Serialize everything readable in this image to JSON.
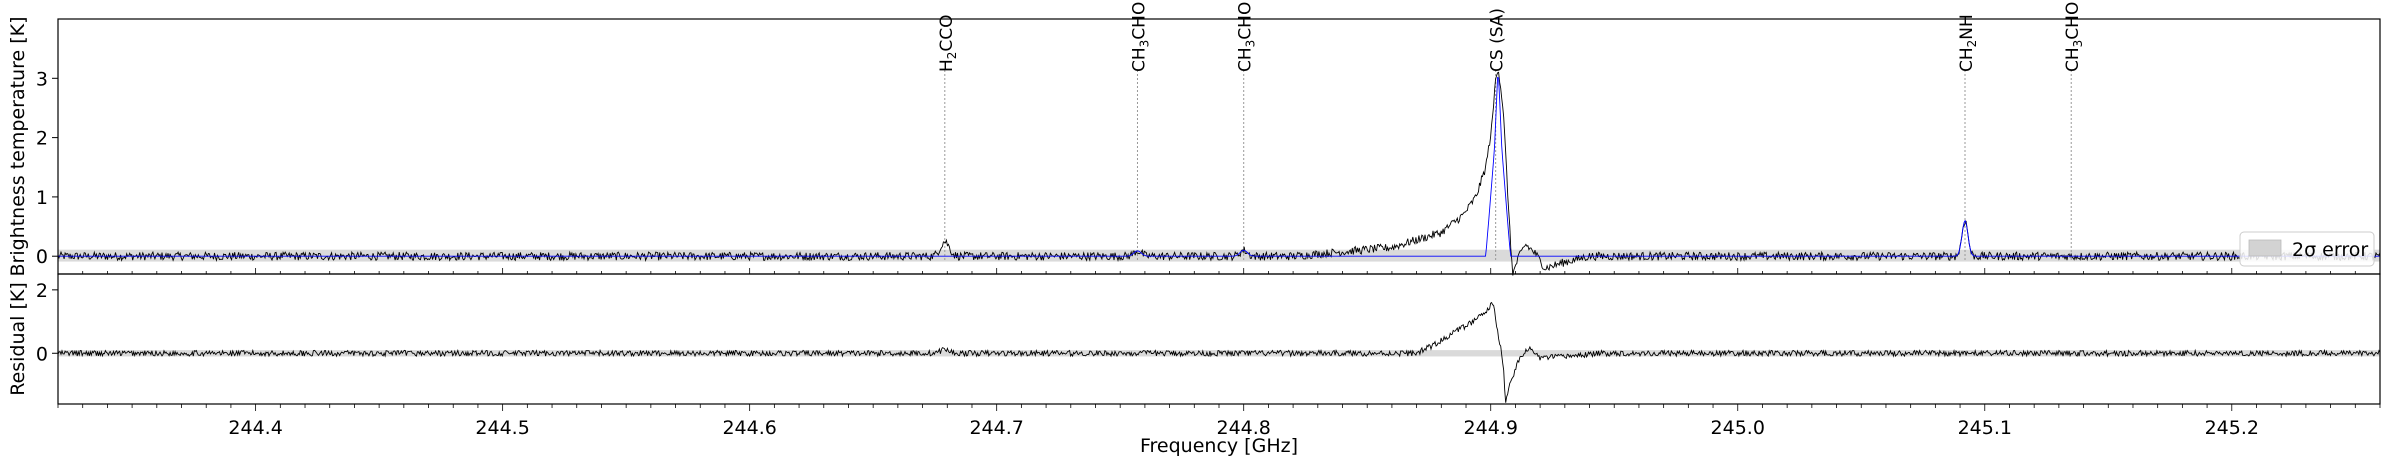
{
  "chart_data": [
    {
      "type": "line",
      "panel": "top",
      "xlabel": "",
      "ylabel": "Brightness temperature [K]",
      "xlim": [
        244.32,
        245.26
      ],
      "ylim": [
        -0.3,
        4.0
      ],
      "yticks": [
        0,
        1,
        2,
        3
      ],
      "legend": {
        "placement": "right",
        "label": "2σ error"
      },
      "error_band": [
        -0.09,
        0.11
      ],
      "series": [
        {
          "role": "observed",
          "color": "#000000",
          "points": [
            [
              244.32,
              0.0
            ],
            [
              244.82,
              0.0
            ],
            [
              244.86,
              0.15
            ],
            [
              244.88,
              0.4
            ],
            [
              244.889,
              0.7
            ],
            [
              244.894,
              1.0
            ],
            [
              244.898,
              1.5
            ],
            [
              244.9005,
              2.2
            ],
            [
              244.902,
              3.0
            ],
            [
              244.903,
              3.2
            ],
            [
              244.905,
              2.5
            ],
            [
              244.907,
              1.0
            ],
            [
              244.908,
              0.2
            ],
            [
              244.909,
              -0.3
            ],
            [
              244.911,
              -0.05
            ],
            [
              244.914,
              0.2
            ],
            [
              244.918,
              0.05
            ],
            [
              244.922,
              -0.2
            ],
            [
              244.93,
              -0.1
            ],
            [
              244.94,
              0.0
            ],
            [
              245.26,
              0.0
            ]
          ]
        },
        {
          "role": "model",
          "color": "#0000ff",
          "points": [
            [
              244.32,
              0.0
            ],
            [
              244.898,
              0.0
            ],
            [
              244.9015,
              1.8
            ],
            [
              244.903,
              3.2
            ],
            [
              244.9045,
              1.8
            ],
            [
              244.908,
              0.0
            ],
            [
              245.26,
              0.0
            ]
          ]
        }
      ],
      "peaks": [
        {
          "center": 244.679,
          "height": 0.25,
          "width": 0.0018,
          "model": false
        },
        {
          "center": 244.757,
          "height": 0.09,
          "width": 0.0015,
          "model": true
        },
        {
          "center": 244.8,
          "height": 0.1,
          "width": 0.0015,
          "model": true
        },
        {
          "center": 245.092,
          "height": 0.6,
          "width": 0.0012,
          "model": true
        }
      ],
      "line_markers": [
        {
          "x": 244.679,
          "label": "H2CCO",
          "sub": "2",
          "pre": "H",
          "post": "CCO"
        },
        {
          "x": 244.757,
          "label": "CH3CHO",
          "sub": "3",
          "pre": "CH",
          "post": "CHO"
        },
        {
          "x": 244.8,
          "label": "CH3CHO",
          "sub": "3",
          "pre": "CH",
          "post": "CHO"
        },
        {
          "x": 244.902,
          "label": "CS (SA)",
          "sub": "",
          "pre": "CS (SA)",
          "post": ""
        },
        {
          "x": 245.092,
          "label": "CH2NH",
          "sub": "2",
          "pre": "CH",
          "post": "NH"
        },
        {
          "x": 245.135,
          "label": "CH3CHO",
          "sub": "3",
          "pre": "CH",
          "post": "CHO"
        }
      ]
    },
    {
      "type": "line",
      "panel": "bottom",
      "xlabel": "Frequency [GHz]",
      "ylabel": "Residual [K]",
      "xlim": [
        244.32,
        245.26
      ],
      "ylim": [
        -1.6,
        2.5
      ],
      "yticks": [
        0,
        2
      ],
      "xticks": [
        244.4,
        244.5,
        244.6,
        244.7,
        244.8,
        244.9,
        245.0,
        245.1,
        245.2
      ],
      "error_band": [
        -0.1,
        0.1
      ],
      "series": [
        {
          "role": "residual",
          "color": "#000000",
          "points": [
            [
              244.32,
              0.0
            ],
            [
              244.87,
              0.0
            ],
            [
              244.878,
              0.3
            ],
            [
              244.886,
              0.7
            ],
            [
              244.893,
              1.0
            ],
            [
              244.898,
              1.3
            ],
            [
              244.901,
              1.6
            ],
            [
              244.903,
              0.6
            ],
            [
              244.905,
              -0.3
            ],
            [
              244.906,
              -1.5
            ],
            [
              244.908,
              -0.9
            ],
            [
              244.912,
              -0.1
            ],
            [
              244.916,
              0.15
            ],
            [
              244.92,
              -0.15
            ],
            [
              244.93,
              -0.1
            ],
            [
              244.945,
              0.0
            ],
            [
              245.26,
              0.0
            ]
          ]
        }
      ],
      "peaks": [
        {
          "center": 244.679,
          "height": 0.12,
          "width": 0.0018,
          "model": false
        }
      ]
    }
  ]
}
